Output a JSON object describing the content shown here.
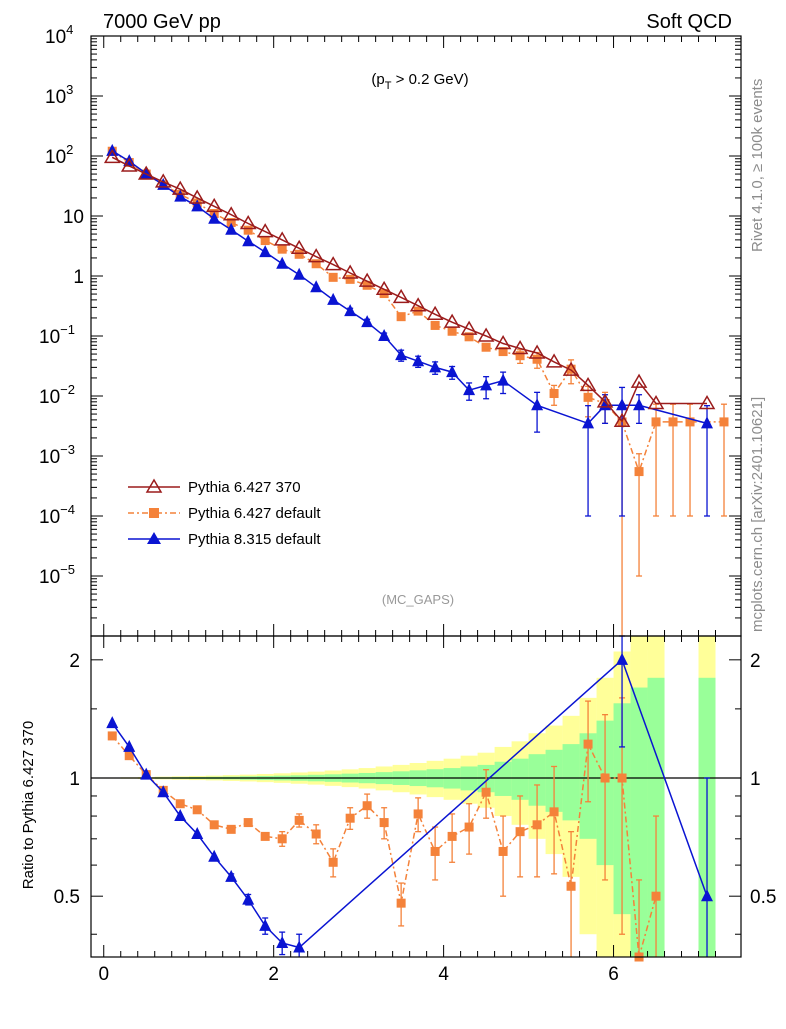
{
  "header": {
    "left": "7000 GeV pp",
    "right": "Soft QCD"
  },
  "side_labels": {
    "top": "Rivet 4.1.0, ≥ 100k events",
    "bottom": "mcplots.cern.ch [arXiv:2401.10621]"
  },
  "colors": {
    "p6_370": "#9b1c1c",
    "p6_def": "#f4823a",
    "p8": "#0a14d2",
    "band_yellow": "#ffff99",
    "band_green": "#99ff99"
  },
  "chart_data": [
    {
      "type": "scatter",
      "scale": "log",
      "annotation": "(p_T > 0.2 GeV)",
      "annotation_prefix": "(p",
      "annotation_sub": "T",
      "annotation_suffix": " > 0.2 GeV)",
      "watermark": "(MC_GAPS)",
      "xlim": [
        -0.15,
        7.5
      ],
      "ylim": [
        1e-06,
        10000
      ],
      "yticks": [
        {
          "label": "10",
          "exp": "4"
        },
        {
          "label": "10",
          "exp": "3"
        },
        {
          "label": "10",
          "exp": "2"
        },
        {
          "label": "10",
          "exp": ""
        },
        {
          "label": "1",
          "exp": ""
        },
        {
          "label": "10",
          "exp": "−1"
        },
        {
          "label": "10",
          "exp": "−2"
        },
        {
          "label": "10",
          "exp": "−3"
        },
        {
          "label": "10",
          "exp": "−4"
        },
        {
          "label": "10",
          "exp": "−5"
        }
      ],
      "legend": [
        "Pythia 6.427 370",
        "Pythia 6.427 default",
        "Pythia 8.315 default"
      ],
      "series": [
        {
          "name": "Pythia 6.427 370",
          "x": [
            0.1,
            0.3,
            0.5,
            0.7,
            0.9,
            1.1,
            1.3,
            1.5,
            1.7,
            1.9,
            2.1,
            2.3,
            2.5,
            2.7,
            2.9,
            3.1,
            3.3,
            3.5,
            3.7,
            3.9,
            4.1,
            4.3,
            4.5,
            4.7,
            4.9,
            5.1,
            5.3,
            5.5,
            5.7,
            5.9,
            6.1,
            6.3,
            6.5,
            7.1
          ],
          "y": [
            95,
            68,
            50,
            37,
            28,
            20,
            14.5,
            10.5,
            7.5,
            5.5,
            4,
            2.9,
            2.1,
            1.55,
            1.12,
            0.82,
            0.6,
            0.44,
            0.32,
            0.23,
            0.17,
            0.13,
            0.1,
            0.075,
            0.062,
            0.052,
            0.037,
            0.027,
            0.015,
            0.008,
            0.0038,
            0.017,
            0.0075,
            0.0075
          ],
          "err": [
            0,
            0,
            0,
            0,
            0,
            0,
            0,
            0,
            0,
            0,
            0,
            0,
            0,
            0,
            0,
            0,
            0,
            0,
            0,
            0,
            0,
            0,
            0,
            0,
            0,
            0,
            0,
            0,
            0,
            0,
            0,
            0,
            0,
            0
          ]
        },
        {
          "name": "Pythia 6.427 default",
          "x": [
            0.1,
            0.3,
            0.5,
            0.7,
            0.9,
            1.1,
            1.3,
            1.5,
            1.7,
            1.9,
            2.1,
            2.3,
            2.5,
            2.7,
            2.9,
            3.1,
            3.3,
            3.5,
            3.7,
            3.9,
            4.1,
            4.3,
            4.5,
            4.7,
            4.9,
            5.1,
            5.3,
            5.5,
            5.7,
            5.9,
            6.1,
            6.3,
            6.5,
            6.7,
            6.9,
            7.3
          ],
          "y": [
            120,
            78,
            50,
            33,
            23,
            16.5,
            11,
            7.8,
            5.8,
            3.9,
            2.8,
            2.3,
            1.6,
            0.95,
            0.88,
            0.7,
            0.51,
            0.21,
            0.26,
            0.15,
            0.12,
            0.097,
            0.065,
            0.055,
            0.047,
            0.041,
            0.011,
            0.028,
            0.0095,
            0.0075,
            0.0037,
            0.00055,
            0.0037,
            0.0037,
            0.0037,
            0.0037
          ],
          "err": [
            0,
            0,
            0,
            0,
            0,
            0,
            0,
            0,
            0,
            0,
            0,
            0,
            0,
            0,
            0,
            0,
            0,
            0,
            0,
            0,
            0,
            0,
            0,
            0,
            0.012,
            0.012,
            0.004,
            0.012,
            0.005,
            0.004,
            0.0037,
            0.00054,
            0.0036,
            0.0036,
            0.0036,
            0.0036
          ]
        },
        {
          "name": "Pythia 8.315 default",
          "x": [
            0.1,
            0.3,
            0.5,
            0.7,
            0.9,
            1.1,
            1.3,
            1.5,
            1.7,
            1.9,
            2.1,
            2.3,
            2.5,
            2.7,
            2.9,
            3.1,
            3.3,
            3.5,
            3.7,
            3.9,
            4.1,
            4.3,
            4.5,
            4.7,
            5.1,
            5.7,
            5.9,
            6.1,
            6.3,
            7.1
          ],
          "y": [
            122,
            82,
            51,
            33,
            21,
            14.5,
            9,
            5.9,
            3.8,
            2.5,
            1.6,
            1.05,
            0.65,
            0.4,
            0.26,
            0.17,
            0.1,
            0.048,
            0.038,
            0.03,
            0.025,
            0.0125,
            0.015,
            0.018,
            0.007,
            0.0035,
            0.007,
            0.007,
            0.007,
            0.0035
          ],
          "err": [
            0,
            0,
            0,
            0,
            0,
            0,
            0,
            0,
            0,
            0,
            0,
            0,
            0,
            0,
            0.03,
            0.02,
            0.012,
            0.01,
            0.008,
            0.007,
            0.006,
            0.004,
            0.006,
            0.007,
            0.0045,
            0.0034,
            0.0035,
            0.0069,
            0.0035,
            0.0034
          ]
        }
      ]
    },
    {
      "type": "scatter",
      "scale": "linear",
      "ylabel": "Ratio to Pythia 6.427 370",
      "xlim": [
        -0.15,
        7.5
      ],
      "ylim": [
        0.35,
        2.3
      ],
      "xticks": [
        "0",
        "2",
        "4",
        "6"
      ],
      "xtick_values": [
        0,
        2,
        4,
        6
      ],
      "yticks": [
        "2",
        "1",
        "0.5"
      ],
      "ytick_values": [
        2,
        1,
        0.5
      ],
      "band": {
        "x_edges": [
          0,
          0.2,
          0.4,
          0.6,
          0.8,
          1.0,
          1.2,
          1.4,
          1.6,
          1.8,
          2.0,
          2.2,
          2.4,
          2.6,
          2.8,
          3.0,
          3.2,
          3.4,
          3.6,
          3.8,
          4.0,
          4.2,
          4.4,
          4.6,
          4.8,
          5.0,
          5.2,
          5.4,
          5.6,
          5.8,
          6.0,
          6.2,
          6.4,
          6.6
        ],
        "green": [
          0.0015,
          0.002,
          0.003,
          0.004,
          0.005,
          0.006,
          0.007,
          0.008,
          0.01,
          0.012,
          0.014,
          0.016,
          0.019,
          0.022,
          0.026,
          0.03,
          0.035,
          0.04,
          0.046,
          0.053,
          0.06,
          0.07,
          0.08,
          0.1,
          0.12,
          0.15,
          0.18,
          0.22,
          0.3,
          0.4,
          0.55,
          0.7,
          0.8
        ],
        "yellow": [
          0.003,
          0.004,
          0.006,
          0.008,
          0.01,
          0.012,
          0.014,
          0.017,
          0.02,
          0.024,
          0.028,
          0.033,
          0.038,
          0.045,
          0.052,
          0.06,
          0.07,
          0.08,
          0.092,
          0.106,
          0.12,
          0.14,
          0.16,
          0.2,
          0.24,
          0.3,
          0.36,
          0.44,
          0.6,
          0.8,
          1.1,
          1.4,
          1.6
        ],
        "extra_x": [
          7.0,
          7.2
        ],
        "extra_green": 0.8,
        "extra_yellow": 1.6
      },
      "series": [
        {
          "name": "Pythia 6.427 default",
          "x": [
            0.1,
            0.3,
            0.5,
            0.7,
            0.9,
            1.1,
            1.3,
            1.5,
            1.7,
            1.9,
            2.1,
            2.3,
            2.5,
            2.7,
            2.9,
            3.1,
            3.3,
            3.5,
            3.7,
            3.9,
            4.1,
            4.3,
            4.5,
            4.7,
            4.9,
            5.1,
            5.3,
            5.5,
            5.7,
            5.9,
            6.1,
            6.3,
            6.5
          ],
          "y": [
            1.28,
            1.14,
            1.02,
            0.93,
            0.86,
            0.83,
            0.76,
            0.74,
            0.77,
            0.71,
            0.7,
            0.78,
            0.72,
            0.61,
            0.79,
            0.85,
            0.77,
            0.48,
            0.81,
            0.65,
            0.71,
            0.75,
            0.92,
            0.65,
            0.73,
            0.76,
            0.82,
            0.53,
            1.22,
            1.0,
            1.0,
            0.35,
            0.5
          ],
          "err": [
            0,
            0,
            0,
            0,
            0,
            0,
            0,
            0,
            0,
            0,
            0.03,
            0.03,
            0.04,
            0.05,
            0.05,
            0.06,
            0.07,
            0.06,
            0.08,
            0.1,
            0.1,
            0.11,
            0.13,
            0.15,
            0.17,
            0.2,
            0.25,
            0.2,
            0.35,
            0.45,
            0.6,
            0.2,
            0.3
          ]
        },
        {
          "name": "Pythia 8.315 default",
          "x": [
            0.1,
            0.3,
            0.5,
            0.7,
            0.9,
            1.1,
            1.3,
            1.5,
            1.7,
            1.9,
            2.1,
            2.3,
            6.1,
            7.1
          ],
          "y": [
            1.38,
            1.2,
            1.02,
            0.92,
            0.8,
            0.72,
            0.63,
            0.56,
            0.49,
            0.42,
            0.38,
            0.37,
            2.0,
            0.5
          ],
          "err": [
            0,
            0,
            0,
            0,
            0,
            0,
            0,
            0.01,
            0.015,
            0.02,
            0.025,
            0.03,
            0.8,
            0.5
          ]
        }
      ]
    }
  ]
}
